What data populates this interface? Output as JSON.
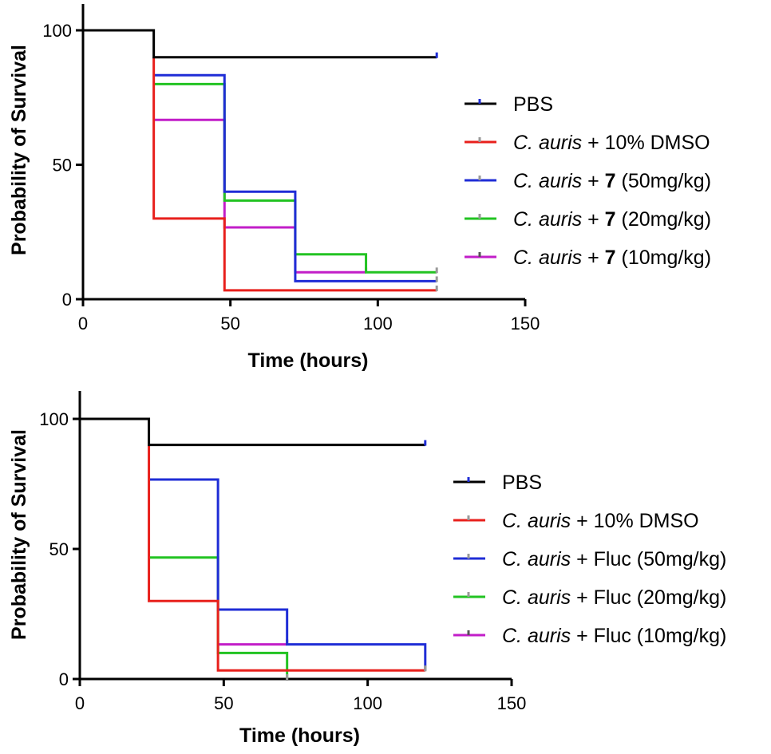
{
  "chart_data": [
    {
      "type": "line",
      "step": true,
      "xlabel": "Time (hours)",
      "ylabel": "Probability of Survival",
      "xlim": [
        0,
        150
      ],
      "ylim": [
        0,
        100
      ],
      "xticks": [
        "0",
        "50",
        "100",
        "150"
      ],
      "yticks": [
        "0",
        "50",
        "100"
      ],
      "series": [
        {
          "name": "PBS",
          "legend": {
            "italic": "",
            "plain": "PBS",
            "bold": "",
            "tail": ""
          },
          "color": "#000000",
          "censor_color": "#1f2dd6",
          "points": [
            [
              0,
              100
            ],
            [
              24,
              100
            ],
            [
              24,
              90
            ],
            [
              120,
              90
            ]
          ]
        },
        {
          "name": "C. auris + 10% DMSO",
          "legend": {
            "italic": "C. auris",
            "plain": " + 10% DMSO",
            "bold": "",
            "tail": ""
          },
          "color": "#e8201c",
          "censor_color": "#999999",
          "points": [
            [
              24,
              90
            ],
            [
              24,
              30
            ],
            [
              48,
              30
            ],
            [
              48,
              3.3
            ],
            [
              120,
              3.3
            ]
          ]
        },
        {
          "name": "C. auris + 7 (50mg/kg)",
          "legend": {
            "italic": "C. auris",
            "plain": " + ",
            "bold": "7",
            "tail": " (50mg/kg)"
          },
          "color": "#1f2dd6",
          "censor_color": "#999999",
          "points": [
            [
              24,
              83.3
            ],
            [
              48,
              83.3
            ],
            [
              48,
              40
            ],
            [
              72,
              40
            ],
            [
              72,
              6.7
            ],
            [
              120,
              6.7
            ]
          ]
        },
        {
          "name": "C. auris + 7 (20mg/kg)",
          "legend": {
            "italic": "C. auris",
            "plain": " + ",
            "bold": "7",
            "tail": " (20mg/kg)"
          },
          "color": "#22c322",
          "censor_color": "#999999",
          "points": [
            [
              24,
              80
            ],
            [
              48,
              80
            ],
            [
              48,
              36.7
            ],
            [
              72,
              36.7
            ],
            [
              72,
              16.7
            ],
            [
              96,
              16.7
            ],
            [
              96,
              10
            ],
            [
              120,
              10
            ]
          ]
        },
        {
          "name": "C. auris + 7 (10mg/kg)",
          "legend": {
            "italic": "C. auris",
            "plain": " + ",
            "bold": "7",
            "tail": " (10mg/kg)"
          },
          "color": "#c21ec8",
          "censor_color": "#555555",
          "points": [
            [
              24,
              66.7
            ],
            [
              48,
              66.7
            ],
            [
              48,
              26.7
            ],
            [
              72,
              26.7
            ],
            [
              72,
              10
            ],
            [
              96,
              10
            ]
          ]
        }
      ]
    },
    {
      "type": "line",
      "step": true,
      "xlabel": "Time (hours)",
      "ylabel": "Probability of Survival",
      "xlim": [
        0,
        150
      ],
      "ylim": [
        0,
        100
      ],
      "xticks": [
        "0",
        "50",
        "100",
        "150"
      ],
      "yticks": [
        "0",
        "50",
        "100"
      ],
      "series": [
        {
          "name": "PBS",
          "legend": {
            "italic": "",
            "plain": "PBS",
            "bold": "",
            "tail": ""
          },
          "color": "#000000",
          "censor_color": "#1f2dd6",
          "points": [
            [
              0,
              100
            ],
            [
              24,
              100
            ],
            [
              24,
              90
            ],
            [
              120,
              90
            ]
          ]
        },
        {
          "name": "C. auris + 10% DMSO",
          "legend": {
            "italic": "C. auris",
            "plain": " + 10% DMSO",
            "bold": "",
            "tail": ""
          },
          "color": "#e8201c",
          "censor_color": "#999999",
          "points": [
            [
              24,
              90
            ],
            [
              24,
              30
            ],
            [
              48,
              30
            ],
            [
              48,
              3.3
            ],
            [
              120,
              3.3
            ]
          ]
        },
        {
          "name": "C. auris + Fluc (50mg/kg)",
          "legend": {
            "italic": "C. auris",
            "plain": " + Fluc (50mg/kg)",
            "bold": "",
            "tail": ""
          },
          "color": "#1f2dd6",
          "censor_color": "#999999",
          "points": [
            [
              24,
              76.7
            ],
            [
              48,
              76.7
            ],
            [
              48,
              26.7
            ],
            [
              72,
              26.7
            ],
            [
              72,
              13.3
            ],
            [
              120,
              13.3
            ],
            [
              120,
              3.3
            ]
          ]
        },
        {
          "name": "C. auris + Fluc (20mg/kg)",
          "legend": {
            "italic": "C. auris",
            "plain": " + Fluc (20mg/kg)",
            "bold": "",
            "tail": ""
          },
          "color": "#22c322",
          "censor_color": "#999999",
          "points": [
            [
              24,
              46.7
            ],
            [
              48,
              46.7
            ],
            [
              48,
              10
            ],
            [
              72,
              10
            ],
            [
              72,
              0
            ]
          ]
        },
        {
          "name": "C. auris + Fluc (10mg/kg)",
          "legend": {
            "italic": "C. auris",
            "plain": " + Fluc (10mg/kg)",
            "bold": "",
            "tail": ""
          },
          "color": "#c21ec8",
          "censor_color": "#555555",
          "points": [
            [
              48,
              13.3
            ],
            [
              72,
              13.3
            ]
          ]
        }
      ]
    }
  ]
}
